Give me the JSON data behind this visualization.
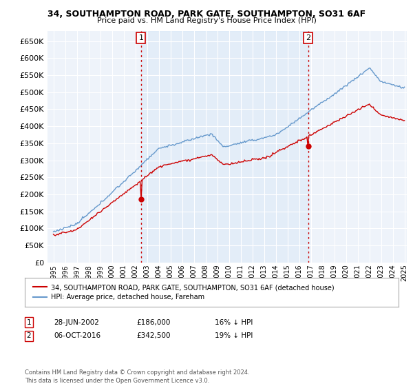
{
  "title": "34, SOUTHAMPTON ROAD, PARK GATE, SOUTHAMPTON, SO31 6AF",
  "subtitle": "Price paid vs. HM Land Registry's House Price Index (HPI)",
  "yticks": [
    0,
    50000,
    100000,
    150000,
    200000,
    250000,
    300000,
    350000,
    400000,
    450000,
    500000,
    550000,
    600000,
    650000
  ],
  "ylim": [
    0,
    680000
  ],
  "xlim": [
    1994.5,
    2025.2
  ],
  "legend_line1": "34, SOUTHAMPTON ROAD, PARK GATE, SOUTHAMPTON, SO31 6AF (detached house)",
  "legend_line2": "HPI: Average price, detached house, Fareham",
  "legend_line1_color": "#cc0000",
  "legend_line2_color": "#6699cc",
  "purchase1_year": 2002.49,
  "purchase1_value": 186000,
  "purchase2_year": 2016.77,
  "purchase2_value": 342500,
  "copyright": "Contains HM Land Registry data © Crown copyright and database right 2024.\nThis data is licensed under the Open Government Licence v3.0.",
  "background_color": "#ffffff",
  "plot_bg_color": "#eef3fa",
  "grid_color": "#ffffff",
  "shade_color": "#d0e4f7",
  "vline_color": "#cc0000",
  "hpi_color": "#6699cc",
  "price_color": "#cc0000",
  "marker_box_color": "#cc0000"
}
